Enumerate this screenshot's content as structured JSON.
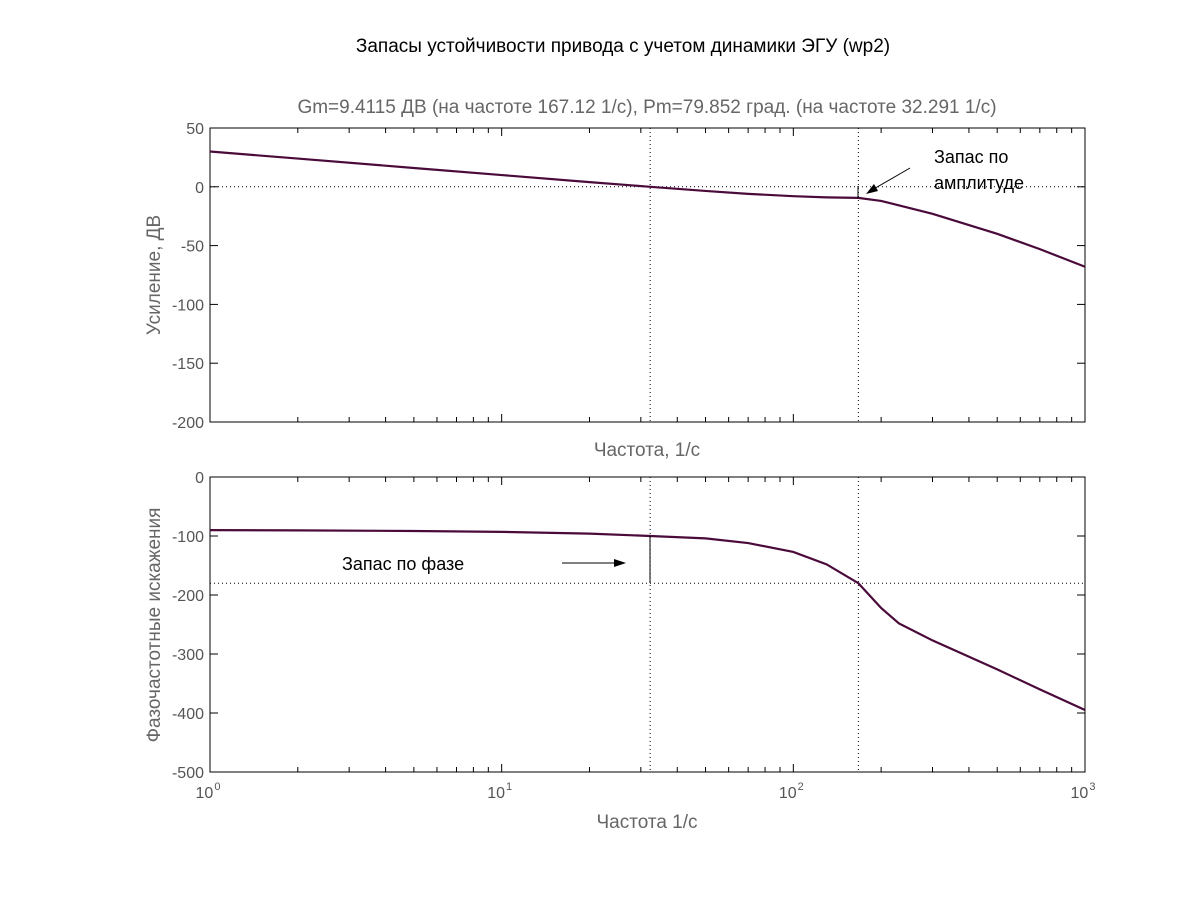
{
  "chart_data": [
    {
      "type": "line",
      "title": "Запасы устойчивости привода с учетом динамики ЭГУ  (wp2)",
      "subtitle": "Gm=9.4115 ДВ (на частоте 167.12 1/с), Pm=79.852 град. (на частоте 32.291 1/с)",
      "xlabel": "Частота, 1/с",
      "ylabel": "Усиление, ДВ",
      "xscale": "log",
      "xlim": [
        1,
        1000
      ],
      "ylim": [
        -200,
        50
      ],
      "yticks": [
        50,
        0,
        -50,
        -100,
        -150,
        -200
      ],
      "series": [
        {
          "color": "#4a0a3a",
          "x": [
            1,
            2,
            5,
            10,
            20,
            32.291,
            50,
            70,
            100,
            130,
            167.12,
            200,
            300,
            500,
            700,
            1000
          ],
          "y": [
            30,
            24,
            16,
            10,
            4,
            0,
            -3.5,
            -6,
            -8,
            -9,
            -9.4,
            -12,
            -23,
            -40,
            -53,
            -68
          ]
        }
      ],
      "reference_lines": {
        "y": [
          0
        ],
        "x": [
          32.291,
          167.12
        ]
      },
      "annotations": [
        {
          "text_lines": [
            "Запас по",
            "амплитуде"
          ]
        }
      ]
    },
    {
      "type": "line",
      "xlabel": "Частота 1/с",
      "ylabel": "Фазочастотные искажения",
      "xscale": "log",
      "xlim": [
        1,
        1000
      ],
      "ylim": [
        -500,
        0
      ],
      "yticks": [
        0,
        -100,
        -200,
        -300,
        -400,
        -500
      ],
      "xticks": [
        {
          "base": "10",
          "exp": "0"
        },
        {
          "base": "10",
          "exp": "1"
        },
        {
          "base": "10",
          "exp": "2"
        },
        {
          "base": "10",
          "exp": "3"
        }
      ],
      "series": [
        {
          "color": "#4a0a3a",
          "x": [
            1,
            2,
            5,
            10,
            20,
            32.291,
            50,
            70,
            100,
            130,
            167.12,
            200,
            230,
            300,
            500,
            700,
            1000
          ],
          "y": [
            -90,
            -90.5,
            -91.5,
            -93,
            -96,
            -100,
            -104,
            -112,
            -127,
            -148,
            -180,
            -222,
            -248,
            -277,
            -326,
            -360,
            -395
          ]
        }
      ],
      "reference_lines": {
        "y": [
          -180
        ],
        "x": [
          32.291,
          167.12
        ]
      },
      "annotations": [
        {
          "text": "Запас по фазе"
        }
      ]
    }
  ]
}
